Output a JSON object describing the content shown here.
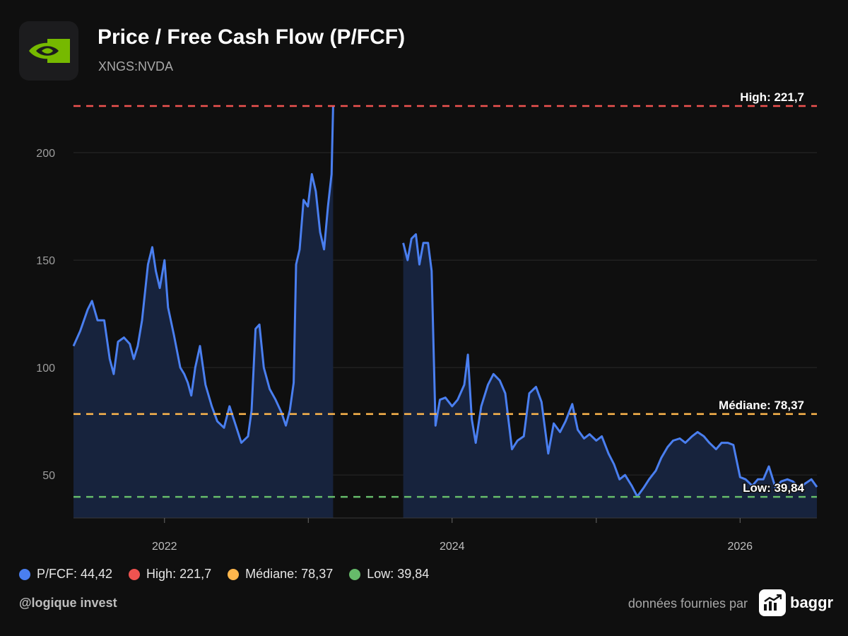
{
  "header": {
    "title": "Price / Free Cash Flow (P/FCF)",
    "ticker": "XNGS:NVDA"
  },
  "colors": {
    "series": "#4a7ff0",
    "high": "#ef5350",
    "median": "#ffb74d",
    "low": "#66bb6a",
    "area_fill": "#17233d"
  },
  "footer": {
    "handle": "@logique invest",
    "credit": "données fournies par",
    "brand_name": "baggr"
  },
  "legend": [
    {
      "label": "P/FCF: 44,42",
      "color": "#4a7ff0"
    },
    {
      "label": "High: 221,7",
      "color": "#ef5350"
    },
    {
      "label": "Médiane: 78,37",
      "color": "#ffb74d"
    },
    {
      "label": "Low: 39,84",
      "color": "#66bb6a"
    }
  ],
  "chart_data": {
    "type": "area",
    "title": "Price / Free Cash Flow (P/FCF)",
    "ylim": [
      30,
      225
    ],
    "xlim": [
      "2021-05-15",
      "2026-07-15"
    ],
    "y_ticks": [
      50,
      100,
      150,
      200
    ],
    "x_ticks": [
      {
        "date": "2022-01-01",
        "label": "2022"
      },
      {
        "date": "2023-01-01",
        "label": ""
      },
      {
        "date": "2024-01-01",
        "label": "2024"
      },
      {
        "date": "2025-01-01",
        "label": ""
      },
      {
        "date": "2026-01-01",
        "label": "2026"
      }
    ],
    "grid": true,
    "reference_lines": [
      {
        "name": "High",
        "label": "High: 221,7",
        "value": 221.7,
        "color": "#ef5350"
      },
      {
        "name": "Médiane",
        "label": "Médiane: 78,37",
        "value": 78.37,
        "color": "#ffb74d"
      },
      {
        "name": "Low",
        "label": "Low: 39,84",
        "value": 39.84,
        "color": "#66bb6a"
      }
    ],
    "series": [
      {
        "name": "P/FCF",
        "segments": [
          [
            [
              "2021-05-15",
              110
            ],
            [
              "2021-06-01",
              117
            ],
            [
              "2021-06-20",
              127
            ],
            [
              "2021-07-01",
              131
            ],
            [
              "2021-07-15",
              122
            ],
            [
              "2021-08-01",
              122
            ],
            [
              "2021-08-15",
              104
            ],
            [
              "2021-08-25",
              97
            ],
            [
              "2021-09-05",
              112
            ],
            [
              "2021-09-20",
              114
            ],
            [
              "2021-10-05",
              111
            ],
            [
              "2021-10-15",
              104
            ],
            [
              "2021-10-25",
              110
            ],
            [
              "2021-11-05",
              122
            ],
            [
              "2021-11-20",
              148
            ],
            [
              "2021-12-01",
              156
            ],
            [
              "2021-12-10",
              145
            ],
            [
              "2021-12-20",
              137
            ],
            [
              "2022-01-01",
              150
            ],
            [
              "2022-01-10",
              128
            ],
            [
              "2022-01-25",
              115
            ],
            [
              "2022-02-10",
              100
            ],
            [
              "2022-02-20",
              97
            ],
            [
              "2022-03-01",
              93
            ],
            [
              "2022-03-10",
              87
            ],
            [
              "2022-03-20",
              100
            ],
            [
              "2022-04-01",
              110
            ],
            [
              "2022-04-15",
              92
            ],
            [
              "2022-05-01",
              82
            ],
            [
              "2022-05-15",
              75
            ],
            [
              "2022-06-01",
              72
            ],
            [
              "2022-06-15",
              82
            ],
            [
              "2022-07-01",
              73
            ],
            [
              "2022-07-15",
              65
            ],
            [
              "2022-08-01",
              68
            ],
            [
              "2022-08-10",
              80
            ],
            [
              "2022-08-20",
              118
            ],
            [
              "2022-08-30",
              120
            ],
            [
              "2022-09-10",
              100
            ],
            [
              "2022-09-25",
              90
            ],
            [
              "2022-10-10",
              85
            ],
            [
              "2022-10-25",
              79
            ],
            [
              "2022-11-05",
              73
            ],
            [
              "2022-11-15",
              80
            ],
            [
              "2022-11-25",
              93
            ],
            [
              "2022-12-01",
              148
            ],
            [
              "2022-12-10",
              155
            ],
            [
              "2022-12-20",
              178
            ],
            [
              "2022-12-31",
              175
            ],
            [
              "2023-01-10",
              190
            ],
            [
              "2023-01-20",
              182
            ],
            [
              "2023-01-31",
              163
            ],
            [
              "2023-02-10",
              155
            ],
            [
              "2023-02-20",
              175
            ],
            [
              "2023-03-01",
              190
            ],
            [
              "2023-03-05",
              221.7
            ]
          ],
          [
            [
              "2023-08-30",
              158
            ],
            [
              "2023-09-10",
              150
            ],
            [
              "2023-09-20",
              160
            ],
            [
              "2023-10-01",
              162
            ],
            [
              "2023-10-10",
              148
            ],
            [
              "2023-10-20",
              158
            ],
            [
              "2023-11-01",
              158
            ],
            [
              "2023-11-10",
              145
            ],
            [
              "2023-11-20",
              73
            ],
            [
              "2023-12-01",
              85
            ],
            [
              "2023-12-15",
              86
            ],
            [
              "2024-01-01",
              82
            ],
            [
              "2024-01-15",
              85
            ],
            [
              "2024-02-01",
              92
            ],
            [
              "2024-02-10",
              106
            ],
            [
              "2024-02-20",
              76
            ],
            [
              "2024-03-01",
              65
            ],
            [
              "2024-03-15",
              82
            ],
            [
              "2024-04-01",
              92
            ],
            [
              "2024-04-15",
              97
            ],
            [
              "2024-05-01",
              94
            ],
            [
              "2024-05-15",
              88
            ],
            [
              "2024-06-01",
              62
            ],
            [
              "2024-06-15",
              66
            ],
            [
              "2024-07-01",
              68
            ],
            [
              "2024-07-15",
              88
            ],
            [
              "2024-08-01",
              91
            ],
            [
              "2024-08-15",
              84
            ],
            [
              "2024-09-01",
              60
            ],
            [
              "2024-09-15",
              74
            ],
            [
              "2024-10-01",
              70
            ],
            [
              "2024-10-15",
              75
            ],
            [
              "2024-11-01",
              83
            ],
            [
              "2024-11-15",
              71
            ],
            [
              "2024-12-01",
              67
            ],
            [
              "2024-12-15",
              69
            ],
            [
              "2025-01-01",
              66
            ],
            [
              "2025-01-15",
              68
            ],
            [
              "2025-02-01",
              60
            ],
            [
              "2025-02-15",
              55
            ],
            [
              "2025-03-01",
              48
            ],
            [
              "2025-03-15",
              50
            ],
            [
              "2025-04-01",
              45
            ],
            [
              "2025-04-15",
              40
            ],
            [
              "2025-05-01",
              44
            ],
            [
              "2025-05-15",
              48
            ],
            [
              "2025-06-01",
              52
            ],
            [
              "2025-06-15",
              58
            ],
            [
              "2025-07-01",
              63
            ],
            [
              "2025-07-15",
              66
            ],
            [
              "2025-08-01",
              67
            ],
            [
              "2025-08-15",
              65
            ],
            [
              "2025-09-01",
              68
            ],
            [
              "2025-09-15",
              70
            ],
            [
              "2025-10-01",
              68
            ],
            [
              "2025-10-15",
              65
            ],
            [
              "2025-11-01",
              62
            ],
            [
              "2025-11-15",
              65
            ],
            [
              "2025-12-01",
              65
            ],
            [
              "2025-12-15",
              64
            ],
            [
              "2026-01-01",
              49
            ],
            [
              "2026-01-15",
              48
            ],
            [
              "2026-02-01",
              45
            ],
            [
              "2026-02-15",
              48
            ],
            [
              "2026-03-01",
              48
            ],
            [
              "2026-03-15",
              54
            ],
            [
              "2026-04-01",
              44
            ],
            [
              "2026-04-15",
              47
            ],
            [
              "2026-05-01",
              48
            ],
            [
              "2026-05-15",
              47
            ],
            [
              "2026-06-01",
              44
            ],
            [
              "2026-06-15",
              46
            ],
            [
              "2026-07-01",
              48
            ],
            [
              "2026-07-15",
              44.42
            ]
          ]
        ]
      }
    ]
  }
}
